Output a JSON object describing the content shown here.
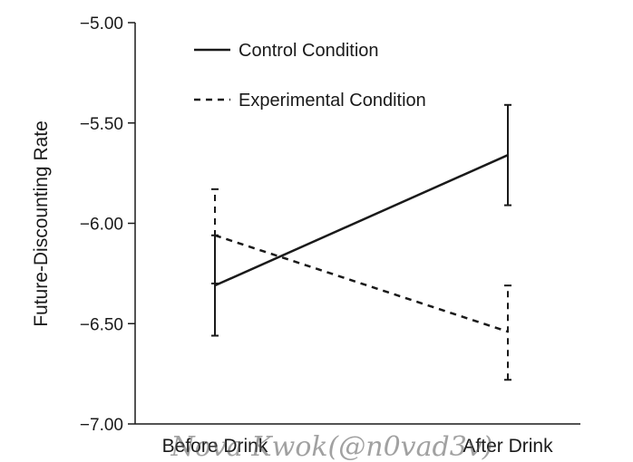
{
  "chart_data": {
    "type": "line",
    "title": "",
    "xlabel": "",
    "ylabel": "Future-Discounting Rate",
    "categories": [
      "Before Drink",
      "After Drink"
    ],
    "ylim": [
      -7.0,
      -5.0
    ],
    "yticks": [
      -7.0,
      -6.5,
      -6.0,
      -5.5,
      -5.0
    ],
    "ytick_labels": [
      "−7.00",
      "−6.50",
      "−6.00",
      "−5.50",
      "−5.00"
    ],
    "grid": false,
    "legend_position": "top-left",
    "series": [
      {
        "name": "Control Condition",
        "style": "solid",
        "values": [
          -6.31,
          -5.66
        ],
        "error_low": [
          -6.56,
          -5.91
        ],
        "error_high": [
          -6.06,
          -5.41
        ]
      },
      {
        "name": "Experimental Condition",
        "style": "dashed",
        "values": [
          -6.06,
          -6.54
        ],
        "error_low": [
          -6.3,
          -6.78
        ],
        "error_high": [
          -5.83,
          -6.31
        ]
      }
    ],
    "line_color": "#1a1a1a"
  },
  "watermark_text": "Nova Kwok(@n0vad3v)"
}
